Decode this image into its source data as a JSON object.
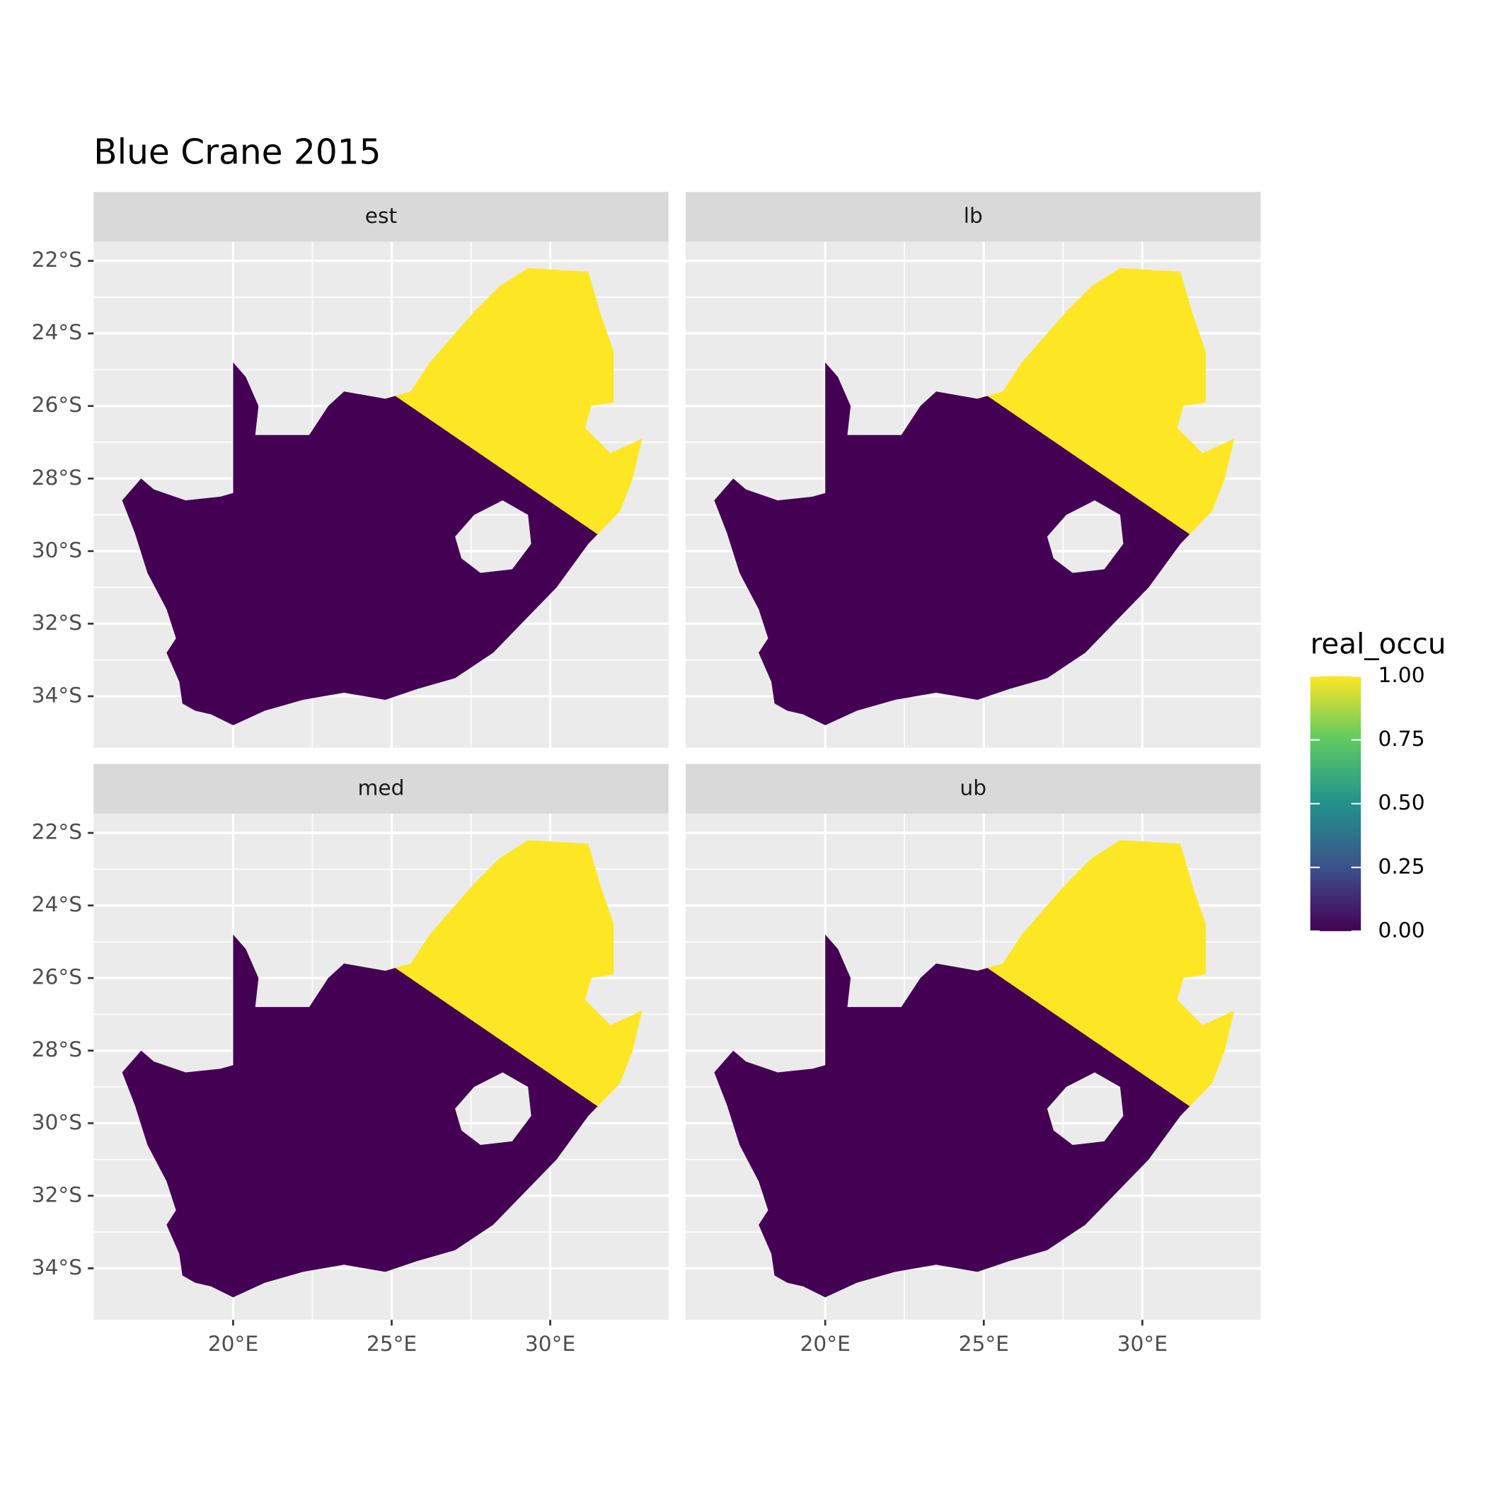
{
  "chart_data": {
    "type": "map",
    "title": "Blue Crane 2015",
    "panels": [
      "est",
      "lb",
      "med",
      "ub"
    ],
    "xlim": [
      15.6,
      33.73
    ],
    "ylim": [
      -35.42,
      -21.47
    ],
    "xticks": [
      {
        "value": 20,
        "label": "20°E"
      },
      {
        "value": 25,
        "label": "25°E"
      },
      {
        "value": 30,
        "label": "30°E"
      }
    ],
    "yticks": [
      {
        "value": -22,
        "label": "22°S"
      },
      {
        "value": -24,
        "label": "24°S"
      },
      {
        "value": -26,
        "label": "26°S"
      },
      {
        "value": -28,
        "label": "28°S"
      },
      {
        "value": -30,
        "label": "30°S"
      },
      {
        "value": -32,
        "label": "32°S"
      },
      {
        "value": -34,
        "label": "34°S"
      }
    ],
    "grid": true,
    "legend": {
      "title": "real_occu",
      "limits": [
        0,
        1
      ],
      "ticks": [
        {
          "value": 0,
          "label": "0.00"
        },
        {
          "value": 0.25,
          "label": "0.25"
        },
        {
          "value": 0.5,
          "label": "0.50"
        },
        {
          "value": 0.75,
          "label": "0.75"
        },
        {
          "value": 1,
          "label": "1.00"
        }
      ],
      "colors": [
        "#440154",
        "#3b528b",
        "#21918c",
        "#5ec962",
        "#fde725"
      ]
    }
  }
}
